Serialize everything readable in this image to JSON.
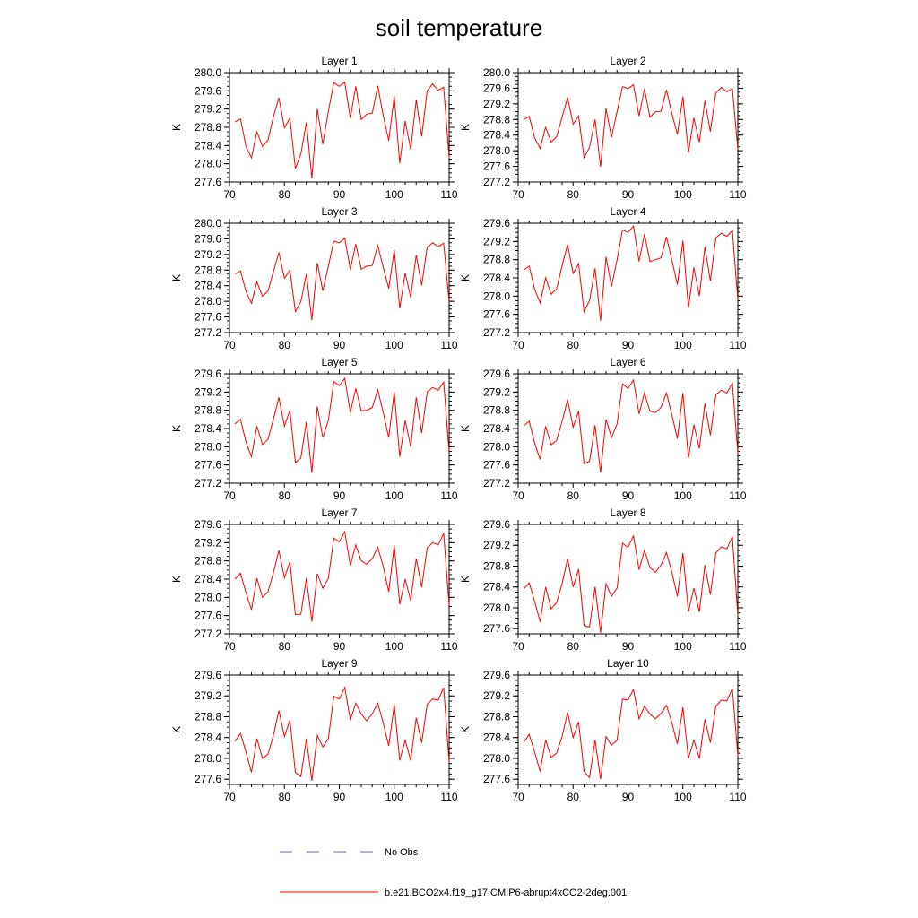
{
  "title": "soil temperature",
  "chart_data": {
    "type": "line",
    "x_ticks": [
      70,
      80,
      90,
      100,
      110
    ],
    "xlim": [
      70,
      110
    ],
    "ylabel": "K",
    "legend": [
      {
        "label": "No Obs",
        "color": "#6a6ad8",
        "style": "dashed"
      },
      {
        "label": "b.e21.BCO2x4.f19_g17.CMIP6-abrupt4xCO2-2deg.001",
        "color": "#ff0000",
        "style": "solid"
      }
    ],
    "x": [
      71,
      72,
      73,
      74,
      75,
      76,
      77,
      78,
      79,
      80,
      81,
      82,
      83,
      84,
      85,
      86,
      87,
      88,
      89,
      90,
      91,
      92,
      93,
      94,
      95,
      96,
      97,
      98,
      99,
      100,
      101,
      102,
      103,
      104,
      105,
      106,
      107,
      108,
      109,
      110
    ],
    "panels": [
      {
        "title": "Layer 1",
        "ylim": [
          277.6,
          280.0
        ],
        "y_ticks": [
          "277.6",
          "278.0",
          "278.4",
          "278.8",
          "279.2",
          "279.6",
          "280.0"
        ],
        "series": [
          {
            "name": "b.e21.BCO2x4.f19_g17.CMIP6-abrupt4xCO2-2deg.001",
            "values": [
              278.92,
              278.98,
              278.38,
              278.13,
              278.7,
              278.38,
              278.51,
              279.03,
              279.45,
              278.79,
              279.0,
              277.9,
              278.21,
              278.91,
              277.68,
              279.2,
              278.43,
              279.15,
              279.78,
              279.7,
              279.79,
              279.0,
              279.7,
              278.97,
              279.09,
              279.11,
              279.71,
              279.06,
              278.51,
              279.48,
              278.01,
              278.94,
              278.31,
              279.4,
              278.6,
              279.6,
              279.75,
              279.61,
              279.68,
              278.13
            ]
          }
        ]
      },
      {
        "title": "Layer 2",
        "ylim": [
          277.2,
          280.0
        ],
        "y_ticks": [
          "277.2",
          "277.6",
          "278.0",
          "278.4",
          "278.8",
          "279.2",
          "279.6",
          "280.0"
        ],
        "series": [
          {
            "name": "b.e21.BCO2x4.f19_g17.CMIP6-abrupt4xCO2-2deg.001",
            "values": [
              278.8,
              278.88,
              278.33,
              278.06,
              278.6,
              278.22,
              278.36,
              278.86,
              279.36,
              278.68,
              278.89,
              277.82,
              278.09,
              278.8,
              277.59,
              279.08,
              278.34,
              279.0,
              279.64,
              279.59,
              279.69,
              278.89,
              279.58,
              278.86,
              279.0,
              279.01,
              279.56,
              278.95,
              278.42,
              279.39,
              277.95,
              278.84,
              278.22,
              279.28,
              278.49,
              279.48,
              279.62,
              279.51,
              279.59,
              278.04
            ]
          }
        ]
      },
      {
        "title": "Layer 3",
        "ylim": [
          277.2,
          280.0
        ],
        "y_ticks": [
          "277.2",
          "277.6",
          "278.0",
          "278.4",
          "278.8",
          "279.2",
          "279.6",
          "280.0"
        ],
        "series": [
          {
            "name": "b.e21.BCO2x4.f19_g17.CMIP6-abrupt4xCO2-2deg.001",
            "values": [
              278.7,
              278.78,
              278.25,
              277.95,
              278.5,
              278.13,
              278.26,
              278.76,
              279.25,
              278.59,
              278.8,
              277.74,
              277.99,
              278.7,
              277.52,
              278.98,
              278.27,
              278.9,
              279.54,
              279.5,
              279.62,
              278.82,
              279.47,
              278.82,
              278.9,
              278.92,
              279.43,
              278.87,
              278.33,
              279.31,
              277.82,
              278.73,
              278.1,
              279.18,
              278.41,
              279.38,
              279.5,
              279.4,
              279.49,
              277.98
            ]
          }
        ]
      },
      {
        "title": "Layer 4",
        "ylim": [
          277.2,
          279.6
        ],
        "y_ticks": [
          "277.2",
          "277.6",
          "278.0",
          "278.4",
          "278.8",
          "279.2",
          "279.6"
        ],
        "series": [
          {
            "name": "b.e21.BCO2x4.f19_g17.CMIP6-abrupt4xCO2-2deg.001",
            "values": [
              278.57,
              278.66,
              278.15,
              277.85,
              278.4,
              278.04,
              278.16,
              278.67,
              279.13,
              278.5,
              278.71,
              277.66,
              277.9,
              278.61,
              277.46,
              278.86,
              278.21,
              278.8,
              279.45,
              279.4,
              279.54,
              278.76,
              279.36,
              278.76,
              278.8,
              278.84,
              279.3,
              278.79,
              278.25,
              279.22,
              277.74,
              278.63,
              278.0,
              279.08,
              278.33,
              279.28,
              279.38,
              279.31,
              279.44,
              277.91
            ]
          }
        ]
      },
      {
        "title": "Layer 5",
        "ylim": [
          277.2,
          279.6
        ],
        "y_ticks": [
          "277.2",
          "277.6",
          "278.0",
          "278.4",
          "278.8",
          "279.2",
          "279.6"
        ],
        "series": [
          {
            "name": "b.e21.BCO2x4.f19_g17.CMIP6-abrupt4xCO2-2deg.001",
            "values": [
              278.5,
              278.6,
              278.1,
              277.78,
              278.45,
              278.05,
              278.16,
              278.6,
              279.08,
              278.45,
              278.8,
              277.65,
              277.75,
              278.55,
              277.43,
              278.88,
              278.2,
              278.58,
              279.43,
              279.34,
              279.5,
              278.75,
              279.28,
              278.79,
              278.8,
              278.86,
              279.25,
              278.75,
              278.2,
              279.2,
              277.78,
              278.58,
              278.0,
              279.08,
              278.3,
              279.2,
              279.3,
              279.24,
              279.42,
              277.88
            ]
          }
        ]
      },
      {
        "title": "Layer 6",
        "ylim": [
          277.2,
          279.6
        ],
        "y_ticks": [
          "277.2",
          "277.6",
          "278.0",
          "278.4",
          "278.8",
          "279.2",
          "279.6"
        ],
        "series": [
          {
            "name": "b.e21.BCO2x4.f19_g17.CMIP6-abrupt4xCO2-2deg.001",
            "values": [
              278.46,
              278.56,
              278.08,
              277.72,
              278.45,
              278.04,
              278.14,
              278.56,
              279.03,
              278.43,
              278.78,
              277.63,
              277.68,
              278.47,
              277.43,
              278.6,
              278.2,
              278.5,
              279.38,
              279.28,
              279.46,
              278.72,
              279.18,
              278.78,
              278.75,
              278.86,
              279.18,
              278.7,
              278.18,
              279.18,
              277.75,
              278.48,
              277.96,
              278.95,
              278.25,
              279.14,
              279.24,
              279.18,
              279.4,
              277.86
            ]
          }
        ]
      },
      {
        "title": "Layer 7",
        "ylim": [
          277.2,
          279.6
        ],
        "y_ticks": [
          "277.2",
          "277.6",
          "278.0",
          "278.4",
          "278.8",
          "279.2",
          "279.6"
        ],
        "series": [
          {
            "name": "b.e21.BCO2x4.f19_g17.CMIP6-abrupt4xCO2-2deg.001",
            "values": [
              278.4,
              278.53,
              278.1,
              277.73,
              278.42,
              278.0,
              278.12,
              278.54,
              279.03,
              278.43,
              278.78,
              277.62,
              277.63,
              278.42,
              277.47,
              278.52,
              278.2,
              278.42,
              279.3,
              279.22,
              279.44,
              278.7,
              279.15,
              278.8,
              278.73,
              278.85,
              279.1,
              278.68,
              278.12,
              279.14,
              277.85,
              278.4,
              277.93,
              278.85,
              278.22,
              279.08,
              279.2,
              279.15,
              279.4,
              277.82
            ]
          }
        ]
      },
      {
        "title": "Layer 8",
        "ylim": [
          277.5,
          279.6
        ],
        "y_ticks": [
          "277.6",
          "278.0",
          "278.4",
          "278.8",
          "279.2",
          "279.6"
        ],
        "series": [
          {
            "name": "b.e21.BCO2x4.f19_g17.CMIP6-abrupt4xCO2-2deg.001",
            "values": [
              278.36,
              278.48,
              278.12,
              277.73,
              278.4,
              277.98,
              278.1,
              278.46,
              278.94,
              278.4,
              278.74,
              277.66,
              277.63,
              278.4,
              277.52,
              278.46,
              278.22,
              278.38,
              279.24,
              279.16,
              279.38,
              278.73,
              279.1,
              278.77,
              278.68,
              278.82,
              279.06,
              278.68,
              278.22,
              279.05,
              277.92,
              278.38,
              277.92,
              278.82,
              278.25,
              279.05,
              279.17,
              279.13,
              279.37,
              277.85
            ]
          }
        ]
      },
      {
        "title": "Layer 9",
        "ylim": [
          277.5,
          279.6
        ],
        "y_ticks": [
          "277.6",
          "278.0",
          "278.4",
          "278.8",
          "279.2",
          "279.6"
        ],
        "series": [
          {
            "name": "b.e21.BCO2x4.f19_g17.CMIP6-abrupt4xCO2-2deg.001",
            "values": [
              278.33,
              278.48,
              278.12,
              277.73,
              278.38,
              278.0,
              278.08,
              278.44,
              278.92,
              278.42,
              278.74,
              277.73,
              277.65,
              278.38,
              277.57,
              278.44,
              278.22,
              278.38,
              279.19,
              279.14,
              279.36,
              278.74,
              279.06,
              278.85,
              278.72,
              278.86,
              279.06,
              278.68,
              278.24,
              279.03,
              277.96,
              278.35,
              277.96,
              278.78,
              278.3,
              279.04,
              279.14,
              279.12,
              279.36,
              277.92
            ]
          }
        ]
      },
      {
        "title": "Layer 10",
        "ylim": [
          277.5,
          279.6
        ],
        "y_ticks": [
          "277.6",
          "278.0",
          "278.4",
          "278.8",
          "279.2",
          "279.6"
        ],
        "series": [
          {
            "name": "b.e21.BCO2x4.f19_g17.CMIP6-abrupt4xCO2-2deg.001",
            "values": [
              278.3,
              278.46,
              278.12,
              277.75,
              278.35,
              278.02,
              278.1,
              278.42,
              278.88,
              278.4,
              278.7,
              277.75,
              277.63,
              278.35,
              277.6,
              278.42,
              278.25,
              278.35,
              279.14,
              279.12,
              279.32,
              278.76,
              279.0,
              278.85,
              278.76,
              278.86,
              279.02,
              278.68,
              278.28,
              278.98,
              278.0,
              278.35,
              278.0,
              278.75,
              278.3,
              279.0,
              279.12,
              279.1,
              279.34,
              278.05
            ]
          }
        ]
      }
    ]
  }
}
